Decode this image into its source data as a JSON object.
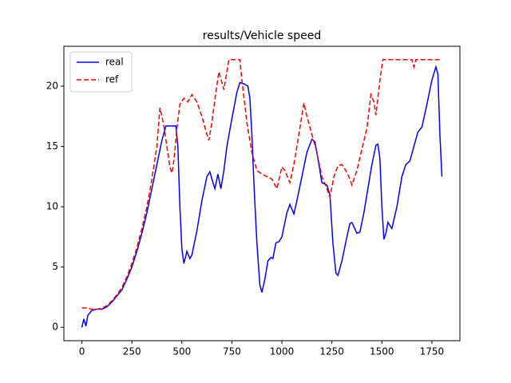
{
  "chart_data": {
    "type": "line",
    "title": "results/Vehicle speed",
    "xlim": [
      -90,
      1890
    ],
    "xticks": [
      0,
      250,
      500,
      750,
      1000,
      1250,
      1500,
      1750
    ],
    "ylim": [
      -1.11,
      23.31
    ],
    "yticks": [
      0,
      5,
      10,
      15,
      20
    ],
    "grid": false,
    "legend": "upper left",
    "series": [
      {
        "name": "real",
        "color": "#0000ff",
        "linestyle": "solid",
        "x": [
          0,
          10,
          20,
          30,
          50,
          75,
          100,
          125,
          150,
          175,
          200,
          225,
          250,
          275,
          300,
          325,
          350,
          375,
          400,
          420,
          450,
          470,
          480,
          490,
          500,
          510,
          525,
          540,
          550,
          575,
          600,
          625,
          640,
          655,
          665,
          680,
          695,
          710,
          725,
          750,
          775,
          790,
          810,
          830,
          840,
          850,
          860,
          875,
          890,
          900,
          915,
          930,
          945,
          955,
          970,
          985,
          1000,
          1025,
          1040,
          1060,
          1075,
          1100,
          1125,
          1150,
          1165,
          1180,
          1200,
          1225,
          1240,
          1255,
          1270,
          1280,
          1300,
          1325,
          1340,
          1350,
          1375,
          1390,
          1410,
          1425,
          1450,
          1470,
          1480,
          1490,
          1500,
          1510,
          1520,
          1530,
          1550,
          1575,
          1600,
          1620,
          1640,
          1660,
          1680,
          1700,
          1725,
          1750,
          1770,
          1780,
          1790,
          1800
        ],
        "values": [
          0,
          0.7,
          0.1,
          1.0,
          1.4,
          1.5,
          1.5,
          1.7,
          2.1,
          2.6,
          3.1,
          4,
          5,
          6.3,
          7.8,
          9.5,
          11.5,
          13.5,
          15.5,
          16.7,
          16.7,
          16.7,
          15,
          10,
          6.5,
          5.3,
          6.3,
          5.7,
          6.0,
          8,
          10.5,
          12.5,
          12.9,
          12,
          11.5,
          12.7,
          11.5,
          13,
          15,
          17.3,
          19.5,
          20.3,
          20.2,
          20,
          19,
          16,
          12,
          7,
          3.5,
          2.9,
          4,
          5.5,
          5.8,
          5.7,
          7,
          7.1,
          7.5,
          9.5,
          10.2,
          9.4,
          10.5,
          12.5,
          14.5,
          15.6,
          15.4,
          14,
          12,
          11.8,
          11,
          7,
          4.5,
          4.3,
          5.5,
          7.5,
          8.6,
          8.7,
          7.8,
          7.9,
          9.5,
          11,
          13.5,
          15.1,
          15.2,
          14,
          10,
          7.3,
          7.8,
          8.7,
          8.2,
          10,
          12.5,
          13.5,
          13.8,
          15,
          16.2,
          16.6,
          18.5,
          20.5,
          21.6,
          21,
          16,
          12.5
        ]
      },
      {
        "name": "ref",
        "color": "#ff0000",
        "linestyle": "dashed",
        "x": [
          0,
          25,
          50,
          75,
          100,
          125,
          150,
          175,
          200,
          225,
          250,
          275,
          300,
          325,
          350,
          375,
          390,
          400,
          410,
          425,
          440,
          450,
          460,
          475,
          490,
          510,
          530,
          550,
          575,
          600,
          625,
          635,
          650,
          670,
          685,
          700,
          710,
          735,
          790,
          800,
          825,
          850,
          875,
          900,
          925,
          950,
          975,
          1000,
          1015,
          1040,
          1060,
          1080,
          1110,
          1125,
          1150,
          1175,
          1200,
          1225,
          1240,
          1260,
          1280,
          1300,
          1320,
          1340,
          1350,
          1375,
          1400,
          1425,
          1445,
          1460,
          1470,
          1490,
          1505,
          1650,
          1660,
          1670,
          1800
        ],
        "values": [
          1.6,
          1.6,
          1.5,
          1.5,
          1.6,
          1.8,
          2.2,
          2.7,
          3.3,
          4.2,
          5.3,
          6.6,
          8.2,
          10,
          12.3,
          15,
          18.2,
          17.5,
          16.7,
          15,
          13.3,
          12.8,
          13.8,
          16.5,
          18.5,
          19,
          18.7,
          19.3,
          18.7,
          17.5,
          16,
          15.5,
          17,
          19.5,
          21.2,
          20.3,
          19.7,
          22.2,
          22.2,
          20.5,
          17,
          14.5,
          13,
          12.7,
          12.5,
          12.3,
          11.5,
          13.3,
          13,
          12,
          13.5,
          15.5,
          18.6,
          17.5,
          16,
          14.5,
          12.5,
          11.5,
          10.8,
          12.5,
          13.4,
          13.5,
          13,
          12.3,
          11.8,
          13,
          14.8,
          16.5,
          19.3,
          18.7,
          17.6,
          20.5,
          22.2,
          22.2,
          21.6,
          22.2,
          22.2
        ]
      }
    ]
  }
}
